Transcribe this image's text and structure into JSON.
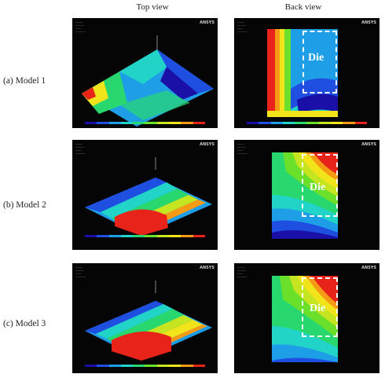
{
  "columns": {
    "top_view": "Top view",
    "back_view": "Back view"
  },
  "rows": [
    {
      "label": "(a) Model 1"
    },
    {
      "label": "(b) Model 2"
    },
    {
      "label": "(c) Model 3"
    }
  ],
  "die_label": "Die",
  "ansys_logo": "ANSYS",
  "colors": {
    "contour": [
      "#1a10a8",
      "#1f4fe0",
      "#1f9ee8",
      "#22d3c8",
      "#28d86e",
      "#6be02a",
      "#c4e51f",
      "#f2e41a",
      "#f59a14",
      "#e8231a"
    ]
  }
}
